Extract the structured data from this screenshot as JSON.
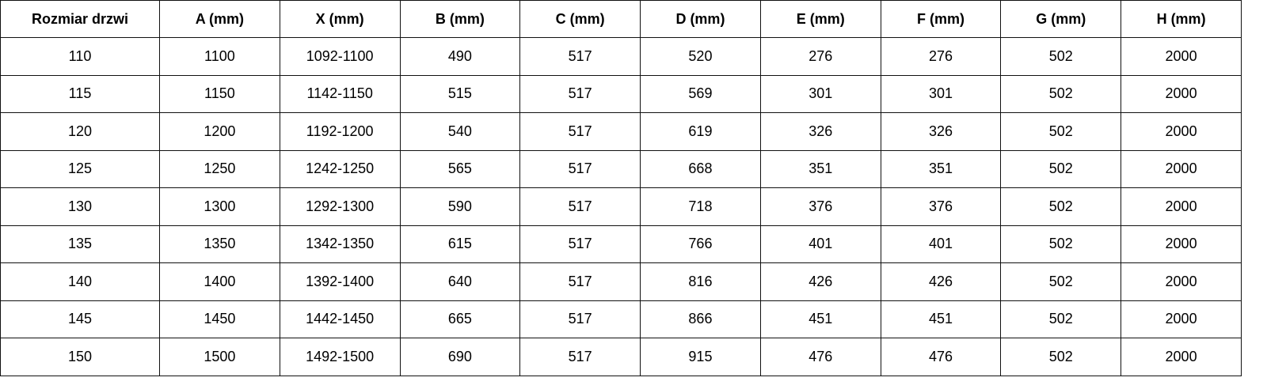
{
  "table": {
    "headers": [
      "Rozmiar drzwi",
      "A (mm)",
      "X (mm)",
      "B (mm)",
      "C (mm)",
      "D (mm)",
      "E (mm)",
      "F (mm)",
      "G (mm)",
      "H (mm)"
    ],
    "rows": [
      [
        "110",
        "1100",
        "1092-1100",
        "490",
        "517",
        "520",
        "276",
        "276",
        "502",
        "2000"
      ],
      [
        "115",
        "1150",
        "1142-1150",
        "515",
        "517",
        "569",
        "301",
        "301",
        "502",
        "2000"
      ],
      [
        "120",
        "1200",
        "1192-1200",
        "540",
        "517",
        "619",
        "326",
        "326",
        "502",
        "2000"
      ],
      [
        "125",
        "1250",
        "1242-1250",
        "565",
        "517",
        "668",
        "351",
        "351",
        "502",
        "2000"
      ],
      [
        "130",
        "1300",
        "1292-1300",
        "590",
        "517",
        "718",
        "376",
        "376",
        "502",
        "2000"
      ],
      [
        "135",
        "1350",
        "1342-1350",
        "615",
        "517",
        "766",
        "401",
        "401",
        "502",
        "2000"
      ],
      [
        "140",
        "1400",
        "1392-1400",
        "640",
        "517",
        "816",
        "426",
        "426",
        "502",
        "2000"
      ],
      [
        "145",
        "1450",
        "1442-1450",
        "665",
        "517",
        "866",
        "451",
        "451",
        "502",
        "2000"
      ],
      [
        "150",
        "1500",
        "1492-1500",
        "690",
        "517",
        "915",
        "476",
        "476",
        "502",
        "2000"
      ]
    ]
  }
}
